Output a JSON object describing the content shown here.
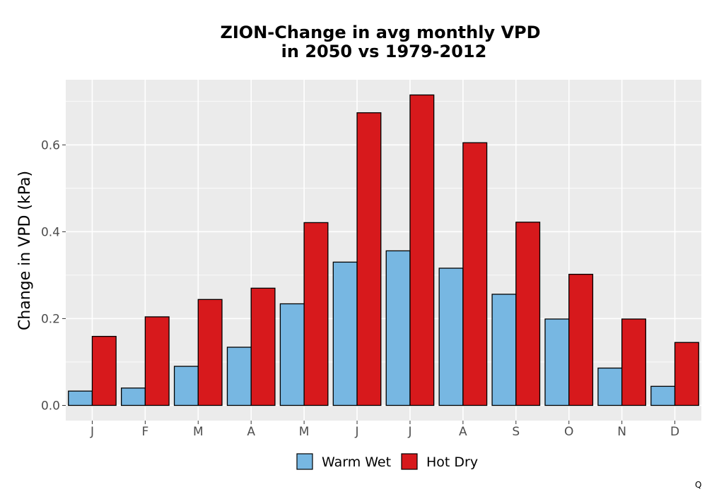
{
  "chart_data": {
    "type": "bar",
    "title_lines": [
      "ZION-Change in avg monthly VPD",
      "in 2050 vs 1979-2012"
    ],
    "ylabel": "Change in VPD (kPa)",
    "xlabel": "",
    "categories": [
      "J",
      "F",
      "M",
      "A",
      "M",
      "J",
      "J",
      "A",
      "S",
      "O",
      "N",
      "D"
    ],
    "series": [
      {
        "name": "Warm Wet",
        "color": "#77b7e2",
        "values": [
          0.033,
          0.04,
          0.09,
          0.134,
          0.234,
          0.33,
          0.356,
          0.316,
          0.256,
          0.199,
          0.086,
          0.044
        ]
      },
      {
        "name": "Hot Dry",
        "color": "#d7191c",
        "values": [
          0.159,
          0.204,
          0.244,
          0.27,
          0.421,
          0.674,
          0.715,
          0.605,
          0.422,
          0.302,
          0.199,
          0.145
        ]
      }
    ],
    "ylim": [
      -0.035,
      0.75
    ],
    "yticks": [
      0.0,
      0.2,
      0.4,
      0.6
    ],
    "ytick_labels": [
      "0.0",
      "0.2",
      "0.4",
      "0.6"
    ],
    "grid": true,
    "legend_position": "bottom"
  },
  "corner_mark": "Q"
}
